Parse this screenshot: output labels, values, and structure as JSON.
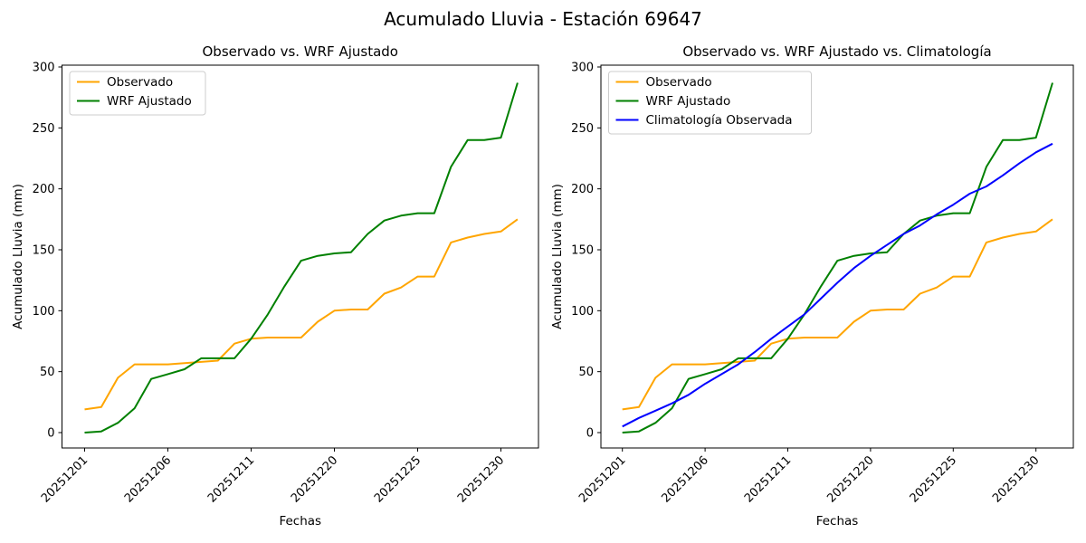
{
  "figure": {
    "title": "Acumulado Lluvia - Estación 69647",
    "background_color": "#ffffff",
    "text_color": "#000000"
  },
  "axes": {
    "x_label": "Fechas",
    "y_label": "Acumulado Lluvia (mm)",
    "y_ticks": [
      "0",
      "50",
      "100",
      "150",
      "200",
      "250",
      "300"
    ],
    "x_tick_labels": [
      "20251201",
      "20251206",
      "20251211",
      "20251220",
      "20251225",
      "20251230"
    ],
    "x_tick_indices": [
      0,
      5,
      10,
      15,
      20,
      25
    ]
  },
  "chart_data": {
    "type": "line",
    "x": [
      "20251201",
      "20251202",
      "20251203",
      "20251204",
      "20251205",
      "20251206",
      "20251207",
      "20251208",
      "20251209",
      "20251210",
      "20251211",
      "20251216",
      "20251217",
      "20251218",
      "20251219",
      "20251220",
      "20251221",
      "20251222",
      "20251223",
      "20251224",
      "20251225",
      "20251226",
      "20251227",
      "20251228",
      "20251229",
      "20251230",
      "20251231"
    ],
    "xlabel": "Fechas",
    "ylabel": "Acumulado Lluvia (mm)",
    "ylim": [
      0,
      300
    ],
    "grid": false,
    "legend_position": "upper-left",
    "series": [
      {
        "name": "Observado",
        "color": "#FFA500",
        "values": [
          19,
          21,
          45,
          56,
          56,
          56,
          57,
          58,
          59,
          73,
          77,
          78,
          78,
          78,
          91,
          100,
          101,
          101,
          114,
          119,
          128,
          128,
          156,
          160,
          163,
          165,
          175
        ]
      },
      {
        "name": "WRF Ajustado",
        "color": "#008000",
        "values": [
          0,
          1,
          8,
          20,
          44,
          48,
          52,
          61,
          61,
          61,
          77,
          97,
          120,
          141,
          145,
          147,
          148,
          163,
          174,
          178,
          180,
          180,
          218,
          240,
          240,
          242,
          287
        ]
      },
      {
        "name": "Climatología Observada",
        "color": "#0000FF",
        "values": [
          5,
          12,
          18,
          24,
          31,
          40,
          48,
          56,
          66,
          77,
          87,
          97,
          110,
          123,
          135,
          145,
          154,
          163,
          170,
          179,
          187,
          196,
          202,
          211,
          221,
          230,
          237
        ]
      }
    ],
    "subplots": [
      {
        "title": "Observado vs. WRF Ajustado",
        "series": [
          "Observado",
          "WRF Ajustado"
        ]
      },
      {
        "title": "Observado vs. WRF Ajustado vs. Climatología",
        "series": [
          "Observado",
          "WRF Ajustado",
          "Climatología Observada"
        ]
      }
    ]
  }
}
